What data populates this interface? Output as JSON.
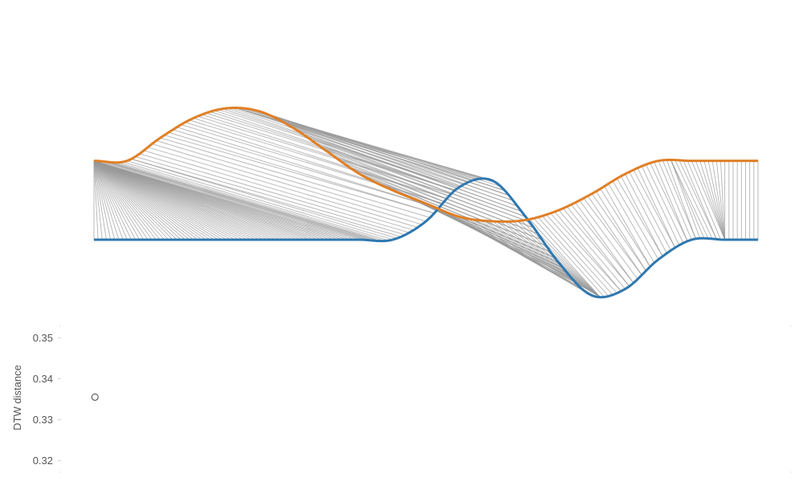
{
  "chart_data": [
    {
      "type": "line",
      "title": "",
      "description_of_series": "two sequences with dynamic-time-warping alignment connectors",
      "x": [
        0,
        0.05,
        0.1,
        0.15,
        0.2,
        0.25,
        0.3,
        0.35,
        0.4,
        0.45,
        0.5,
        0.55,
        0.6,
        0.65,
        0.7,
        0.75,
        0.8,
        0.85,
        0.9,
        0.95,
        1.0
      ],
      "series": [
        {
          "values": [
            0,
            0,
            0,
            0,
            0,
            0,
            0,
            0,
            0,
            0,
            0.28,
            0.8,
            0.9,
            0.35,
            -0.35,
            -0.85,
            -0.75,
            -0.3,
            0,
            0,
            0
          ],
          "color": "#2e78b0"
        },
        {
          "values": [
            1.2,
            1.2,
            1.55,
            1.85,
            2.0,
            1.95,
            1.7,
            1.35,
            1.0,
            0.75,
            0.55,
            0.35,
            0.28,
            0.3,
            0.45,
            0.7,
            1.0,
            1.2,
            1.2,
            1.2,
            1.2
          ],
          "color": "#e07f25"
        }
      ],
      "connector_color": "#9a9a9a",
      "grid": false
    },
    {
      "type": "scatter",
      "ylabel": "DTW distance",
      "ylim": [
        0.317,
        0.353
      ],
      "yticks": [
        "0.32",
        "0.33",
        "0.34",
        "0.35"
      ],
      "points": [
        {
          "x": 0,
          "y": 0.3355
        }
      ],
      "xlim": [
        -0.05,
        1.0
      ],
      "grid": false
    }
  ]
}
